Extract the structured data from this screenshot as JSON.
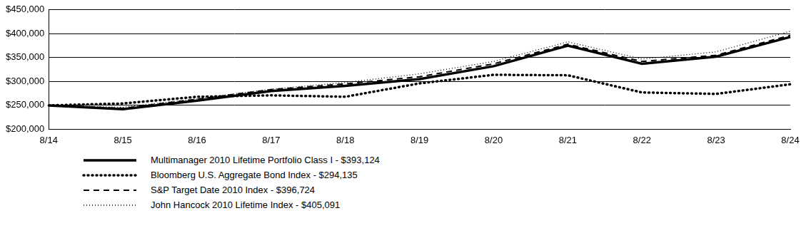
{
  "chart_data": {
    "type": "line",
    "categories": [
      "8/14",
      "8/15",
      "8/16",
      "8/17",
      "8/18",
      "8/19",
      "8/20",
      "8/21",
      "8/22",
      "8/23",
      "8/24"
    ],
    "series": [
      {
        "name": "Multimanager 2010 Lifetime Portfolio Class I - $393,124",
        "color": "#000000",
        "line_style": "solid",
        "values": [
          250000,
          242000,
          260000,
          280000,
          291000,
          305000,
          332000,
          375000,
          337000,
          352000,
          393124
        ]
      },
      {
        "name": "Bloomberg U.S. Aggregate Bond Index - $294,135",
        "color": "#000000",
        "line_style": "dotted",
        "values": [
          250000,
          254000,
          268000,
          271000,
          268000,
          296000,
          314000,
          313000,
          277000,
          274000,
          294135
        ]
      },
      {
        "name": "S&P Target Date 2010 Index - $396,724",
        "color": "#000000",
        "line_style": "dashed",
        "values": [
          250000,
          244000,
          263000,
          283000,
          295000,
          310000,
          337000,
          378000,
          342000,
          355000,
          396724
        ]
      },
      {
        "name": "John Hancock 2010 Lifetime Index - $405,091",
        "color": "#000000",
        "line_style": "fine_dotted",
        "values": [
          250000,
          246000,
          264000,
          284000,
          298000,
          316000,
          342000,
          383000,
          347000,
          362000,
          405091
        ]
      }
    ],
    "ylim": [
      200000,
      450000
    ],
    "yticks": [
      {
        "value": 200000,
        "label": "$200,000"
      },
      {
        "value": 250000,
        "label": "$250,000"
      },
      {
        "value": 300000,
        "label": "$300,000"
      },
      {
        "value": 350000,
        "label": "$350,000"
      },
      {
        "value": 400000,
        "label": "$400,000"
      },
      {
        "value": 450000,
        "label": "$450,000"
      }
    ],
    "grid": true,
    "legend": "bottom"
  }
}
